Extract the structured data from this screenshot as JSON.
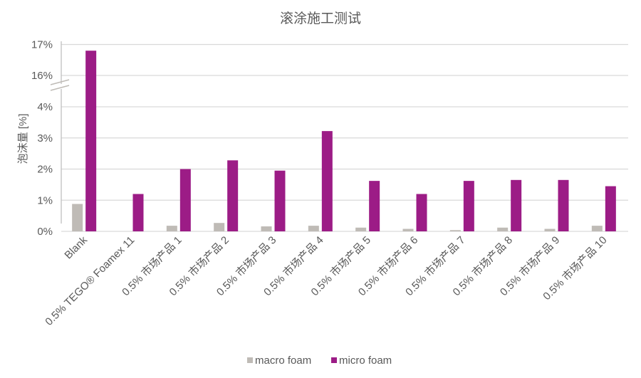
{
  "chart_data": {
    "type": "bar",
    "title": "滚涂施工测试",
    "xlabel": "",
    "ylabel": "泡沫量 [%]",
    "y_axis_break": [
      4,
      16
    ],
    "ylim": [
      0,
      17
    ],
    "yticks": [
      "0%",
      "1%",
      "2%",
      "3%",
      "4%",
      "16%",
      "17%"
    ],
    "ytick_values": [
      0,
      1,
      2,
      3,
      4,
      16,
      17
    ],
    "grid": true,
    "legend_position": "bottom",
    "categories": [
      "Blank",
      "0.5% TEGO® Foamex 11",
      "0.5% 市场产品 1",
      "0.5% 市场产品 2",
      "0.5% 市场产品 3",
      "0.5% 市场产品 4",
      "0.5% 市场产品 5",
      "0.5% 市场产品 6",
      "0.5% 市场产品 7",
      "0.5% 市场产品 8",
      "0.5% 市场产品 9",
      "0.5% 市场产品 10"
    ],
    "series": [
      {
        "name": "macro foam",
        "color": "#BFBBB6",
        "values": [
          0.88,
          0,
          0.18,
          0.27,
          0.16,
          0.18,
          0.12,
          0.08,
          0.04,
          0.12,
          0.08,
          0.18
        ]
      },
      {
        "name": "micro foam",
        "color": "#9C1C86",
        "values": [
          16.8,
          1.2,
          2.0,
          2.28,
          1.95,
          3.22,
          1.62,
          1.2,
          1.62,
          1.65,
          1.65,
          1.45
        ]
      }
    ]
  }
}
